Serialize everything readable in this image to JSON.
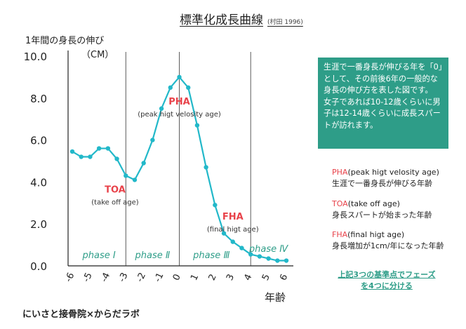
{
  "title": "標準化成長曲線",
  "title_source": "(村田 1996)",
  "y_axis_label": "1年間の身長の伸び",
  "y_axis_unit": "（CM）",
  "x_axis_label": "年齢",
  "colors": {
    "line": "#22b8c9",
    "accent": "#e8424a",
    "phase": "#2e9d88",
    "box": "#2e9d88"
  },
  "chart_data": {
    "type": "line",
    "title": "標準化成長曲線",
    "xlabel": "年齢",
    "ylabel": "1年間の身長の伸び（CM）",
    "xlim": [
      -6,
      6
    ],
    "ylim": [
      0,
      10
    ],
    "x_ticks": [
      "-6",
      "-5",
      "-4",
      "-3",
      "-2",
      "-1",
      "0",
      "1",
      "2",
      "3",
      "4",
      "5",
      "6"
    ],
    "y_ticks": [
      "0.0",
      "2.0",
      "4.0",
      "6.0",
      "8.0",
      "10.0"
    ],
    "x": [
      -6,
      -5.5,
      -5,
      -4.5,
      -4,
      -3.5,
      -3,
      -2.5,
      -2,
      -1.5,
      -1,
      -0.5,
      0,
      0.5,
      1,
      1.5,
      2,
      2.5,
      3,
      3.5,
      4,
      4.5,
      5,
      5.5,
      6
    ],
    "series": [
      {
        "values": [
          5.45,
          5.2,
          5.2,
          5.6,
          5.6,
          5.1,
          4.3,
          4.1,
          4.9,
          6.0,
          7.5,
          8.5,
          9.0,
          8.5,
          6.7,
          4.7,
          2.9,
          1.55,
          1.15,
          0.85,
          0.55,
          0.45,
          0.35,
          0.25,
          0.25
        ]
      }
    ],
    "vertical_lines": [
      -3,
      0,
      4
    ],
    "phases": [
      {
        "label": "phase Ⅰ",
        "x_center": -4.5,
        "y": 0.5
      },
      {
        "label": "phase Ⅱ",
        "x_center": -1.5,
        "y": 0.5
      },
      {
        "label": "phase Ⅲ",
        "x_center": 1.8,
        "y": 0.5
      },
      {
        "label": "phase Ⅳ",
        "x_center": 5.0,
        "y": 0.8
      }
    ],
    "annotations": [
      {
        "key": "PHA",
        "sub": "(peak higt velosity age)",
        "x": 0,
        "y": 7.7
      },
      {
        "key": "TOA",
        "sub": "(take off age)",
        "x": -3.6,
        "y": 3.5
      },
      {
        "key": "FHA",
        "sub": "(final higt age)",
        "x": 3.0,
        "y": 2.2
      }
    ],
    "grid": false
  },
  "info_box": [
    "生涯で一番身長が伸びる年を「0」として、その前後6年の一般的な身長の伸び方を表した図です。",
    "女子であれば10-12歳くらいに男子は12-14歳くらいに成長スパートが訪れます。"
  ],
  "legend": [
    {
      "key": "PHA",
      "sub": "(peak higt velosity age)",
      "desc": "生涯で一番身長が伸びる年齢"
    },
    {
      "key": "TOA",
      "sub": "(take off age)",
      "desc": "身長スパートが始まった年齢"
    },
    {
      "key": "FHA",
      "sub": "(final higt age)",
      "desc": "身長増加が1cm/年になった年齢"
    }
  ],
  "footer_note": "上記3つの基準点でフェーズを4つに分ける",
  "footer": "にいさと接骨院×からだラボ"
}
